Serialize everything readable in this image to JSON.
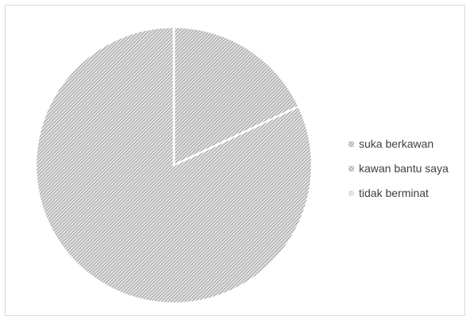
{
  "chart_data": {
    "type": "pie",
    "title": "",
    "categories": [
      "suka berkawan",
      "kawan bantu saya",
      "tidak berminat"
    ],
    "values": [
      18,
      82,
      0
    ],
    "legend_position": "right",
    "colors": [
      "#9a9a9a",
      "#9a9a9a",
      "#bdbdbd"
    ],
    "pattern": "diagonal-hatch"
  }
}
